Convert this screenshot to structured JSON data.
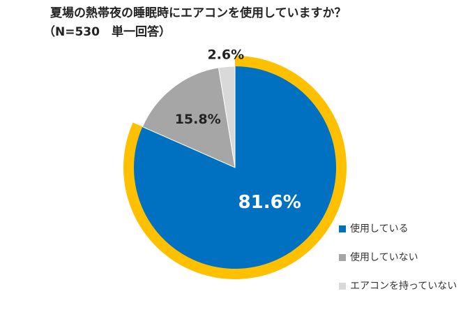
{
  "chart_data": {
    "type": "pie",
    "title": "夏場の熱帯夜の睡眠時にエアコンを使用していますか？",
    "subtitle": "（N=530　単一回答）",
    "categories": [
      "使用している",
      "使用していない",
      "エアコンを持っていない"
    ],
    "values": [
      81.6,
      15.8,
      2.6
    ],
    "value_labels": [
      "81.6%",
      "15.8%",
      "2.6%"
    ],
    "colors": [
      "#0070c0",
      "#a6a6a6",
      "#d9d9d9"
    ],
    "highlight_color": "#ffc000",
    "legend": "right"
  }
}
